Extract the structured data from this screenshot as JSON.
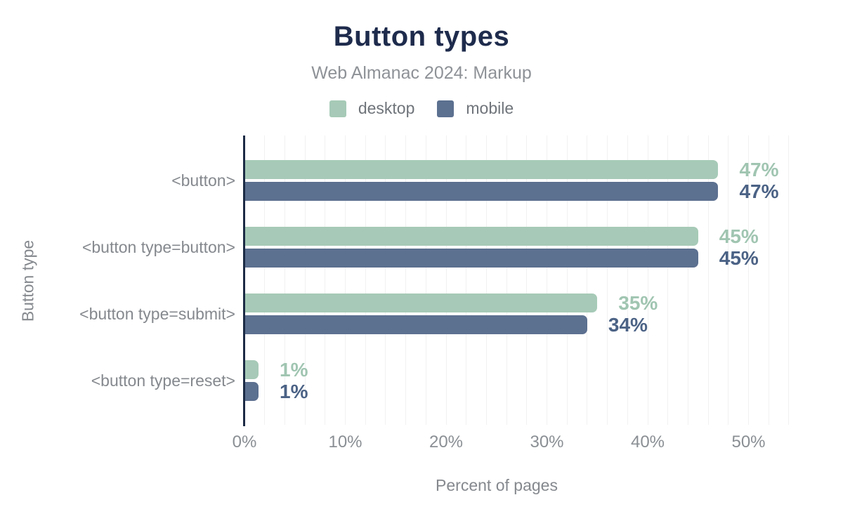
{
  "chart_data": {
    "type": "bar",
    "orientation": "horizontal",
    "title": "Button types",
    "subtitle": "Web Almanac 2024: Markup",
    "xlabel": "Percent of pages",
    "ylabel": "Button type",
    "categories": [
      "<button>",
      "<button type=button>",
      "<button type=submit>",
      "<button type=reset>"
    ],
    "series": [
      {
        "name": "desktop",
        "color": "#a6cab7",
        "label_color": "#a0c5b1",
        "values": [
          47,
          45,
          35,
          1
        ]
      },
      {
        "name": "mobile",
        "color": "#5c7090",
        "label_color": "#4b6285",
        "values": [
          47,
          45,
          34,
          1
        ]
      }
    ],
    "value_suffix": "%",
    "x_ticks": [
      {
        "value": 0,
        "label": "0%"
      },
      {
        "value": 10,
        "label": "10%"
      },
      {
        "value": 20,
        "label": "20%"
      },
      {
        "value": 30,
        "label": "30%"
      },
      {
        "value": 40,
        "label": "40%"
      },
      {
        "value": 50,
        "label": "50%"
      }
    ],
    "xlim": [
      0,
      54
    ],
    "grid": {
      "vertical_minor_step_pct": 2,
      "color": "#f1f1f1"
    },
    "legend_position": "top"
  },
  "colors": {
    "background": "#ffffff",
    "title": "#1e2b4c",
    "subtitle": "#8e9297",
    "legend_text": "#6f747a",
    "category_label": "#85898e",
    "tick_label": "#8a8f94",
    "axis_title": "#85898e",
    "axis_line": "#1c2b45",
    "gridline": "#f1f1f1"
  }
}
